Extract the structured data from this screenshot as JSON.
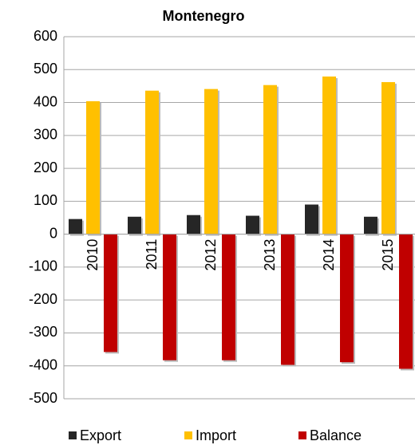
{
  "chart_data": {
    "type": "bar",
    "title": "Montenegro",
    "categories": [
      "2010",
      "2011",
      "2012",
      "2013",
      "2014",
      "2015"
    ],
    "series": [
      {
        "name": "Export",
        "color": "#262626",
        "values": [
          46,
          53,
          58,
          56,
          90,
          53
        ]
      },
      {
        "name": "Import",
        "color": "#ffc000",
        "values": [
          404,
          436,
          441,
          453,
          479,
          462
        ]
      },
      {
        "name": "Balance",
        "color": "#c00000",
        "values": [
          -358,
          -383,
          -383,
          -397,
          -389,
          -409
        ]
      }
    ],
    "ylim": [
      -500,
      600
    ],
    "yticks": [
      -500,
      -400,
      -300,
      -200,
      -100,
      0,
      100,
      200,
      300,
      400,
      500,
      600
    ],
    "grid": true,
    "legend": "bottom"
  }
}
